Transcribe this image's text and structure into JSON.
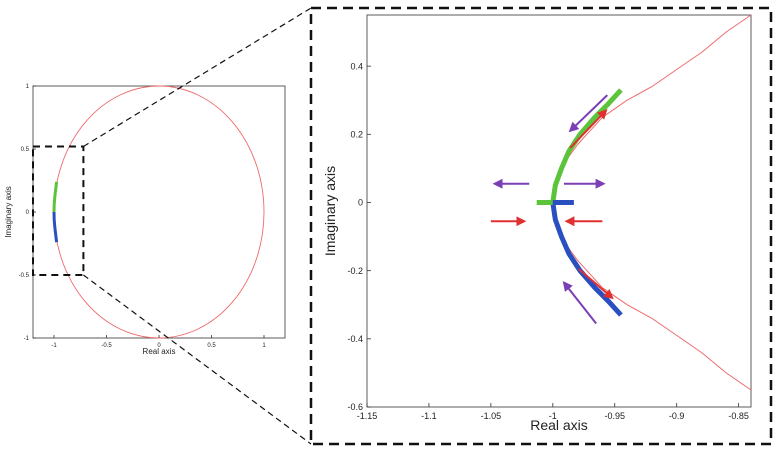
{
  "chart_data": [
    {
      "id": "overview",
      "type": "line",
      "xlabel": "Real axis",
      "ylabel": "Imaginary axis",
      "xlim": [
        -1.2,
        1.2
      ],
      "ylim": [
        -1.0,
        1.0
      ],
      "xticks": [
        -1,
        -0.5,
        0,
        0.5,
        1
      ],
      "xtick_labels": [
        "-1",
        "-0.5",
        "0",
        "0.5",
        "1"
      ],
      "yticks": [
        -1,
        -0.5,
        0,
        0.5,
        1
      ],
      "ytick_labels": [
        "-1",
        "-0.5",
        "0",
        "0.5",
        "1"
      ],
      "grid": false,
      "series": [
        {
          "color": "#ee6b6b",
          "shape": "ellipse",
          "center": [
            0,
            0
          ],
          "radii": [
            1.0,
            1.0
          ]
        },
        {
          "color": "#5cc43b",
          "x": [
            -1.0,
            -0.998,
            -0.992,
            -0.984,
            -0.975
          ],
          "y": [
            0.0,
            0.06,
            0.12,
            0.18,
            0.24
          ]
        },
        {
          "color": "#2a4fc0",
          "x": [
            -1.0,
            -0.998,
            -0.992,
            -0.984,
            -0.975
          ],
          "y": [
            0.0,
            -0.06,
            -0.12,
            -0.18,
            -0.24
          ]
        }
      ],
      "zoom_box": {
        "x": [
          -1.2,
          -0.72
        ],
        "y": [
          -0.5,
          0.52
        ]
      }
    },
    {
      "id": "zoom",
      "type": "line",
      "xlabel": "Real axis",
      "ylabel": "Imaginary axis",
      "xlim": [
        -1.15,
        -0.84
      ],
      "ylim": [
        -0.6,
        0.55
      ],
      "xticks": [
        -1.15,
        -1.1,
        -1.05,
        -1,
        -0.95,
        -0.9,
        -0.85
      ],
      "xtick_labels": [
        "-1.15",
        "-1.1",
        "-1.05",
        "-1",
        "-0.95",
        "-0.9",
        "-0.85"
      ],
      "yticks": [
        -0.6,
        -0.4,
        -0.2,
        0,
        0.2,
        0.4
      ],
      "ytick_labels": [
        "-0.6",
        "-0.4",
        "-0.2",
        "0",
        "0.2",
        "0.4"
      ],
      "grid": false,
      "series": [
        {
          "color": "#ee6b6b",
          "x": [
            -0.84,
            -0.86,
            -0.88,
            -0.9,
            -0.92,
            -0.94,
            -0.96,
            -0.97,
            -0.98,
            -0.99,
            -0.995,
            -1.0,
            -0.995,
            -0.99,
            -0.98,
            -0.97,
            -0.96,
            -0.94,
            -0.92,
            -0.9,
            -0.88,
            -0.86,
            -0.84
          ],
          "y": [
            0.55,
            0.5,
            0.44,
            0.39,
            0.34,
            0.3,
            0.25,
            0.21,
            0.17,
            0.12,
            0.08,
            0.0,
            -0.08,
            -0.12,
            -0.17,
            -0.21,
            -0.25,
            -0.3,
            -0.34,
            -0.39,
            -0.44,
            -0.5,
            -0.55
          ]
        },
        {
          "color": "#5cc43b",
          "x": [
            -1.0,
            -0.998,
            -0.993,
            -0.987,
            -0.978,
            -0.966,
            -0.955,
            -0.945
          ],
          "y": [
            0.0,
            0.05,
            0.1,
            0.15,
            0.2,
            0.25,
            0.29,
            0.33
          ]
        },
        {
          "color": "#2a4fc0",
          "x": [
            -1.0,
            -0.998,
            -0.993,
            -0.987,
            -0.978,
            -0.966,
            -0.955,
            -0.945
          ],
          "y": [
            0.0,
            -0.05,
            -0.1,
            -0.15,
            -0.2,
            -0.25,
            -0.29,
            -0.33
          ]
        },
        {
          "color": "#5cc43b",
          "x": [
            -1.013,
            -1.0
          ],
          "y": [
            0.0,
            0.0
          ]
        },
        {
          "color": "#2a4fc0",
          "x": [
            -1.0,
            -0.983
          ],
          "y": [
            0.0,
            0.0
          ]
        }
      ],
      "arrows": [
        {
          "color": "#7a3fb5",
          "from": [
            -0.956,
            0.315
          ],
          "to": [
            -0.986,
            0.21
          ]
        },
        {
          "color": "#e03030",
          "from": [
            -0.986,
            0.16
          ],
          "to": [
            -0.957,
            0.27
          ]
        },
        {
          "color": "#7a3fb5",
          "from": [
            -1.019,
            0.055
          ],
          "to": [
            -1.047,
            0.055
          ]
        },
        {
          "color": "#7a3fb5",
          "from": [
            -0.991,
            0.055
          ],
          "to": [
            -0.959,
            0.055
          ]
        },
        {
          "color": "#e03030",
          "from": [
            -1.05,
            -0.055
          ],
          "to": [
            -1.023,
            -0.055
          ]
        },
        {
          "color": "#e03030",
          "from": [
            -0.96,
            -0.055
          ],
          "to": [
            -0.989,
            -0.055
          ]
        },
        {
          "color": "#e03030",
          "from": [
            -0.979,
            -0.195
          ],
          "to": [
            -0.952,
            -0.28
          ]
        },
        {
          "color": "#7a3fb5",
          "from": [
            -0.965,
            -0.355
          ],
          "to": [
            -0.991,
            -0.235
          ]
        }
      ]
    }
  ]
}
